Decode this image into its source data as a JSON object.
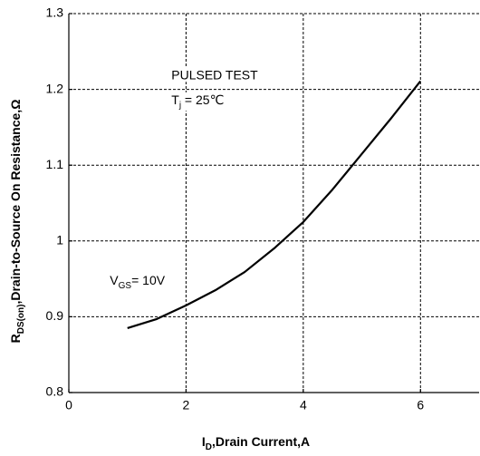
{
  "chart_data": {
    "type": "line",
    "x_label": [
      "I",
      "D",
      ",Drain Current,A"
    ],
    "y_label": [
      "R",
      "DS(on)",
      ",Drain-to-Source On Resistance,Ω"
    ],
    "annotations": [
      {
        "x": 1.75,
        "y": 1.218,
        "parts": [
          "PULSED TEST",
          "",
          ""
        ]
      },
      {
        "x": 1.75,
        "y": 1.185,
        "parts": [
          "T",
          "j",
          " = 25℃"
        ]
      },
      {
        "x": 0.7,
        "y": 0.947,
        "parts": [
          "V",
          "GS",
          "= 10V"
        ]
      }
    ],
    "x": [
      1,
      1.5,
      2,
      2.5,
      3,
      3.5,
      4,
      4.5,
      5,
      5.5,
      6
    ],
    "series": [
      {
        "name": null,
        "color": "#000000",
        "values": [
          0.885,
          0.897,
          0.915,
          0.935,
          0.959,
          0.99,
          1.025,
          1.068,
          1.115,
          1.162,
          1.211
        ]
      }
    ],
    "xlim": [
      0,
      7
    ],
    "ylim": [
      0.8,
      1.3
    ],
    "xticks": [
      0,
      2,
      4,
      6
    ],
    "yticks": [
      0.8,
      0.9,
      1,
      1.1,
      1.2,
      1.3
    ],
    "grid": true
  }
}
